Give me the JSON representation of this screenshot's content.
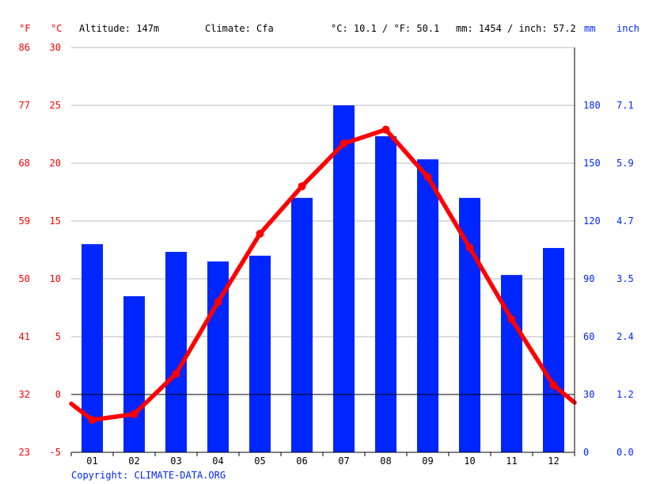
{
  "header": {
    "unit_f": "°F",
    "unit_c": "°C",
    "altitude": "Altitude: 147m",
    "climate": "Climate: Cfa",
    "avg_temp": "°C: 10.1 / °F: 50.1",
    "precip_total": "mm: 1454 / inch: 57.2",
    "unit_mm": "mm",
    "unit_inch": "inch"
  },
  "copyright": "Copyright: CLIMATE-DATA.ORG",
  "colors": {
    "temperature": "#ff0000",
    "precipitation": "#0026ff",
    "grid": "#bbbbbb",
    "zero_line": "#000000",
    "text": "#000000"
  },
  "chart_data": {
    "type": "bar",
    "categories": [
      "01",
      "02",
      "03",
      "04",
      "05",
      "06",
      "07",
      "08",
      "09",
      "10",
      "11",
      "12"
    ],
    "series": [
      {
        "kind": "bar",
        "axis": "right",
        "unit": "mm",
        "values": [
          108,
          81,
          104,
          99,
          102,
          132,
          180,
          164,
          152,
          132,
          92,
          106
        ]
      },
      {
        "kind": "line",
        "axis": "left",
        "unit": "°C",
        "values": [
          -2.2,
          -1.7,
          1.8,
          8.0,
          13.9,
          18.0,
          21.7,
          22.9,
          18.8,
          12.7,
          6.5,
          0.8
        ],
        "start": -0.8,
        "end": -0.7
      }
    ],
    "y_left": {
      "ticks_c": [
        30,
        25,
        20,
        15,
        10,
        5,
        0,
        -5
      ],
      "ticks_f": [
        86,
        77,
        68,
        59,
        50,
        41,
        32,
        23
      ],
      "ylim": [
        -5,
        30
      ]
    },
    "y_right": {
      "ticks_mm": [
        180,
        150,
        120,
        90,
        60,
        30,
        0
      ],
      "ticks_inch": [
        "7.1",
        "5.9",
        "4.7",
        "3.5",
        "2.4",
        "1.2",
        "0.0"
      ],
      "ylim": [
        0,
        210
      ]
    },
    "grid": true,
    "legend": "none"
  }
}
